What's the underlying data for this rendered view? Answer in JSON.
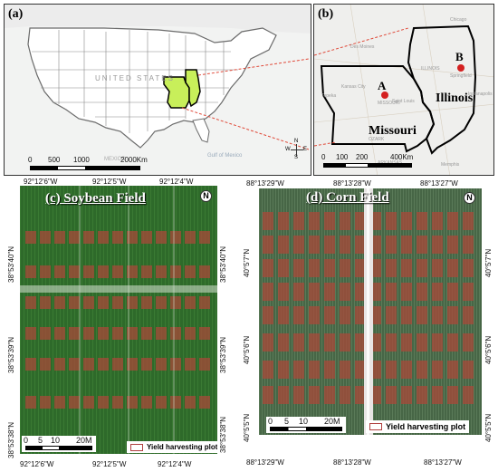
{
  "panel_a": {
    "label": "(a)",
    "country_label": "UNITED STATES",
    "scale": {
      "ticks": [
        "0",
        "500",
        "1000",
        "2000Km"
      ]
    },
    "compass": {
      "n": "N",
      "s": "S",
      "e": "E",
      "w": "W"
    },
    "basemap_text": [
      "Gulf of Mexico",
      "MEXICO"
    ]
  },
  "panel_b": {
    "label": "(b)",
    "states": [
      "Missouri",
      "Illinois"
    ],
    "points": [
      "A",
      "B"
    ],
    "scale": {
      "ticks": [
        "0",
        "100",
        "200",
        "400Km"
      ]
    },
    "basemap_text": [
      "Des Moines",
      "Springfield",
      "Kansas City",
      "Topeka",
      "Saint Louis",
      "ARKANSAS",
      "Memphis",
      "OZARK",
      "ILLINOIS",
      "MISSOURI",
      "Chicago",
      "Indianapolis"
    ]
  },
  "panel_c": {
    "label": "(c) Soybean Field",
    "top_ticks": [
      "92°12'6\"W",
      "92°12'5\"W",
      "92°12'4\"W"
    ],
    "bottom_ticks": [
      "92°12'6\"W",
      "92°12'5\"W",
      "92°12'4\"W"
    ],
    "left_ticks": [
      "38°53'40\"N",
      "38°53'39\"N",
      "38°53'38\"N"
    ],
    "right_ticks": [
      "38°53'40\"N",
      "38°53'39\"N",
      "38°53'38\"N"
    ],
    "scale": {
      "ticks": [
        "0",
        "5",
        "10",
        "20M"
      ]
    },
    "legend": "Yield harvesting plot",
    "north": "N"
  },
  "panel_d": {
    "label": "(d) Corn Field",
    "top_ticks": [
      "88°13'29\"W",
      "88°13'28\"W",
      "88°13'27\"W"
    ],
    "bottom_ticks": [
      "88°13'29\"W",
      "88°13'28\"W",
      "88°13'27\"W"
    ],
    "left_ticks": [
      "40°5'7\"N",
      "40°5'6\"N",
      "40°5'5\"N"
    ],
    "right_ticks": [
      "40°5'7\"N",
      "40°5'6\"N",
      "40°5'5\"N"
    ],
    "scale": {
      "ticks": [
        "0",
        "5",
        "10",
        "20M"
      ]
    },
    "legend": "Yield harvesting plot",
    "north": "N"
  },
  "colors": {
    "highlight_states": "#c8ef5a",
    "location_points": "#d42020",
    "connector_arrows": "#e04a3a",
    "plot_red": "#a84a3a",
    "soy_green": "#2e6a2a",
    "corn_green": "#476646"
  }
}
